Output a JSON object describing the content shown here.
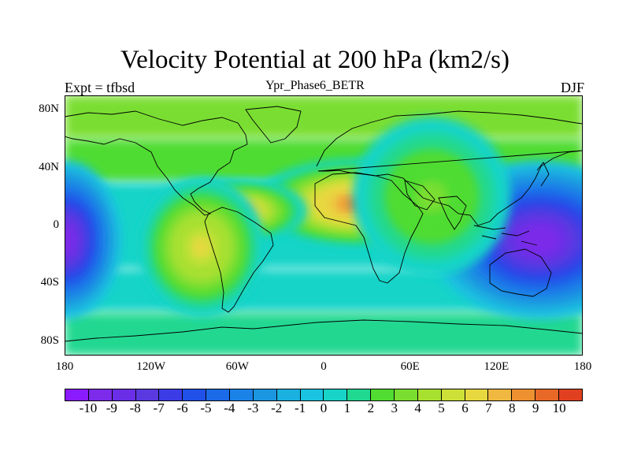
{
  "title": "Velocity Potential at 200 hPa (km2/s)",
  "subtitle": "Ypr_Phase6_BETR",
  "left_label": "Expt = tfbsd",
  "right_label": "DJF",
  "map": {
    "projection": "cylindrical-equidistant",
    "lon_range": [
      -180,
      180
    ],
    "lat_range": [
      -90,
      90
    ],
    "coastlines": true,
    "x_ticks": [
      {
        "lon": -180,
        "label": "180"
      },
      {
        "lon": -120,
        "label": "120W"
      },
      {
        "lon": -60,
        "label": "60W"
      },
      {
        "lon": 0,
        "label": "0"
      },
      {
        "lon": 60,
        "label": "60E"
      },
      {
        "lon": 120,
        "label": "120E"
      },
      {
        "lon": 180,
        "label": "180"
      }
    ],
    "y_ticks": [
      {
        "lat": 80,
        "label": "80N"
      },
      {
        "lat": 40,
        "label": "40N"
      },
      {
        "lat": 0,
        "label": "0"
      },
      {
        "lat": -40,
        "label": "40S"
      },
      {
        "lat": -80,
        "label": "80S"
      }
    ]
  },
  "field_features": [
    {
      "lon": 25,
      "lat": 15,
      "value": 9.5,
      "sx": 34,
      "sy": 14
    },
    {
      "lon": -60,
      "lat": 10,
      "value": 8.0,
      "sx": 22,
      "sy": 10
    },
    {
      "lon": -85,
      "lat": -15,
      "value": 6.5,
      "sx": 20,
      "sy": 22
    },
    {
      "lon": 150,
      "lat": -10,
      "value": -10,
      "sx": 35,
      "sy": 25
    },
    {
      "lon": -180,
      "lat": -10,
      "value": -10,
      "sx": 18,
      "sy": 25
    },
    {
      "lon": 75,
      "lat": 20,
      "value": 3.5,
      "sx": 25,
      "sy": 25
    }
  ],
  "colorbar": {
    "levels": [
      "-10",
      "-9",
      "-8",
      "-7",
      "-6",
      "-5",
      "-4",
      "-3",
      "-2",
      "-1",
      "0",
      "1",
      "2",
      "3",
      "4",
      "5",
      "6",
      "7",
      "8",
      "9",
      "10"
    ],
    "colors": [
      "#8a1bff",
      "#7b2be9",
      "#6a2ee6",
      "#5a3ae0",
      "#3c3ce6",
      "#2050e8",
      "#1b6ae8",
      "#1b82e8",
      "#1b96e0",
      "#1ab0e0",
      "#1ac4e0",
      "#18d4c8",
      "#20d890",
      "#50dc30",
      "#7ade30",
      "#a8e030",
      "#cce038",
      "#e8d840",
      "#f0b840",
      "#ec9030",
      "#e86828",
      "#e04020"
    ]
  }
}
